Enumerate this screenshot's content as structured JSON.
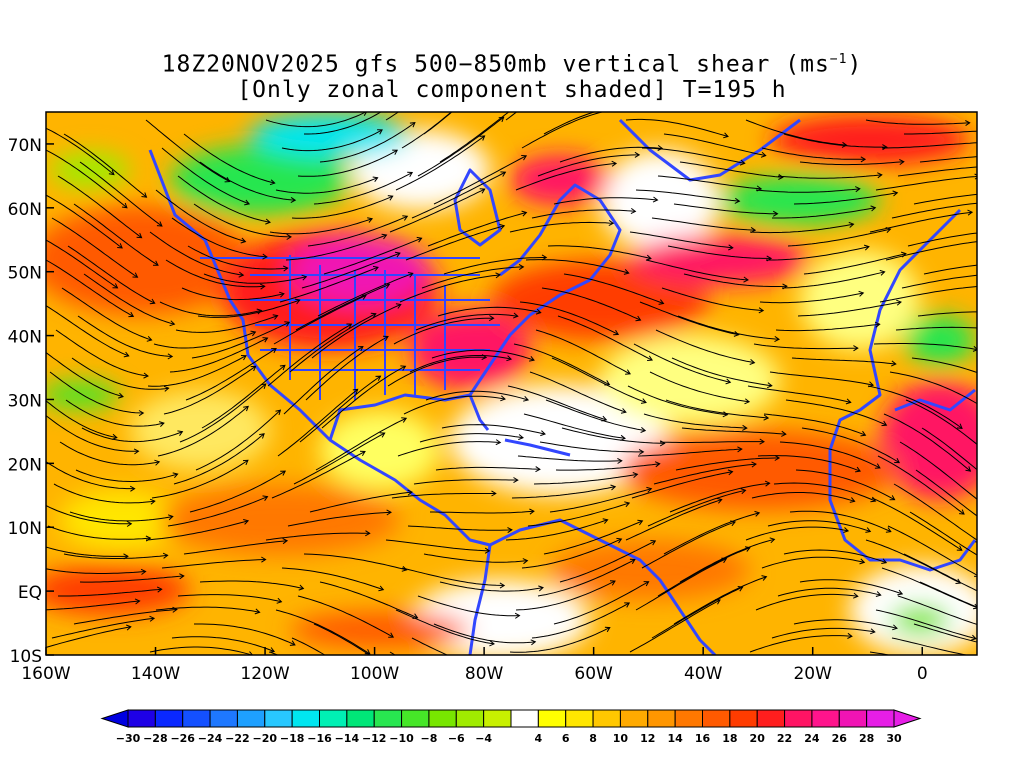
{
  "title": {
    "line1_prefix": "18Z20NOV2025 gfs 500−850mb vertical shear (ms",
    "line1_exp": "−1",
    "line1_suffix": ")",
    "line2": "[Only zonal component shaded] T=195 h"
  },
  "axes": {
    "y_ticks": [
      "70N",
      "60N",
      "50N",
      "40N",
      "30N",
      "20N",
      "10N",
      "EQ",
      "10S"
    ],
    "x_ticks": [
      "160W",
      "140W",
      "120W",
      "100W",
      "80W",
      "60W",
      "40W",
      "20W",
      "0"
    ],
    "lon_range": [
      -160,
      10
    ],
    "lat_range": [
      -10,
      75
    ]
  },
  "colorbar": {
    "labels": [
      "−30",
      "−28",
      "−26",
      "−24",
      "−22",
      "−20",
      "−18",
      "−16",
      "−14",
      "−12",
      "−10",
      "−8",
      "−6",
      "−4",
      "4",
      "6",
      "8",
      "10",
      "12",
      "14",
      "16",
      "18",
      "20",
      "22",
      "24",
      "26",
      "28",
      "30"
    ],
    "colors": [
      "#1e00e6",
      "#0a28ff",
      "#1450ff",
      "#1e78ff",
      "#1ea0ff",
      "#28c8ff",
      "#00e6f0",
      "#00f0b4",
      "#00e678",
      "#28e650",
      "#46e628",
      "#78e600",
      "#a0eb00",
      "#c8f000",
      "#ffffff",
      "#ffff00",
      "#ffe600",
      "#ffc800",
      "#ffaa00",
      "#ff9600",
      "#ff7800",
      "#ff5a00",
      "#ff3c00",
      "#ff1e1e",
      "#ff1464",
      "#ff148c",
      "#f014b4",
      "#e61ee6"
    ]
  },
  "colors": {
    "map_border": "#3246ff",
    "streamline": "#000000"
  }
}
